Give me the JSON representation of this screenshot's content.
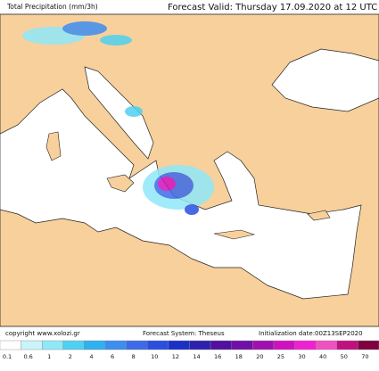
{
  "header": {
    "title": "Total Precipitation (mm/3h)",
    "valid": "Forecast Valid:  Thursday 17.09.2020 at 12 UTC"
  },
  "footer": {
    "copyright": "copyright www.xolozi.gr",
    "system": "Forecast System: Theseus",
    "init": "Initialization date:00Z13SEP2020"
  },
  "legend": {
    "ticks": [
      0.1,
      0.6,
      1,
      2,
      4,
      6,
      8,
      10,
      12,
      14,
      16,
      18,
      20,
      25,
      30,
      40,
      50,
      70
    ],
    "colors": [
      "#ffffff",
      "#c8f4fa",
      "#8fe8f8",
      "#50d0f0",
      "#30b0f0",
      "#3d8ef0",
      "#3d6ae8",
      "#2a4ee0",
      "#1a30c8",
      "#3020b0",
      "#5010a0",
      "#7010a8",
      "#a010b0",
      "#d010c0",
      "#f020d0",
      "#f050c0",
      "#c01080",
      "#800040"
    ]
  }
}
